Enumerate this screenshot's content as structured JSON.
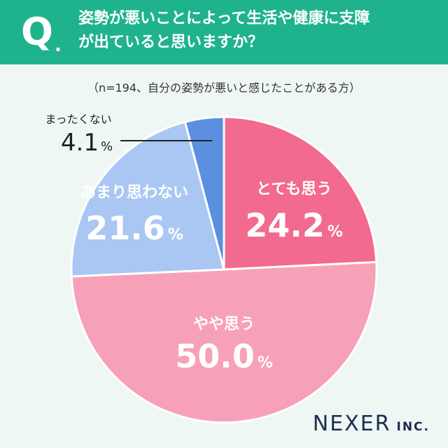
{
  "header": {
    "q_mark": "Q",
    "q_dot": ".",
    "question_line1": "姿勢が悪いことによって生活や健康に支障",
    "question_line2": "が出ていると思いますか？"
  },
  "sample_note": "（n=194、自分の姿勢が悪いと感じたことがある方）",
  "brand": {
    "name": "NEXER",
    "suffix": "INC."
  },
  "colors": {
    "header": "#1fb38d",
    "slice_totemo": "#f26a8d",
    "slice_yaya": "#f7a1b8",
    "slice_amari": "#a9c7f2",
    "slice_mattaku": "#5b8fe0"
  },
  "chart_data": {
    "type": "pie",
    "title": "",
    "unit": "%",
    "slices": [
      {
        "label": "とても思う",
        "value": 24.2,
        "value_text": "24.2",
        "color": "#f26a8d"
      },
      {
        "label": "やや思う",
        "value": 50.0,
        "value_text": "50.0",
        "color": "#f7a1b8"
      },
      {
        "label": "あまり思わない",
        "value": 21.6,
        "value_text": "21.6",
        "color": "#a9c7f2"
      },
      {
        "label": "まったくない",
        "value": 4.1,
        "value_text": "4.1",
        "color": "#5b8fe0"
      }
    ]
  }
}
